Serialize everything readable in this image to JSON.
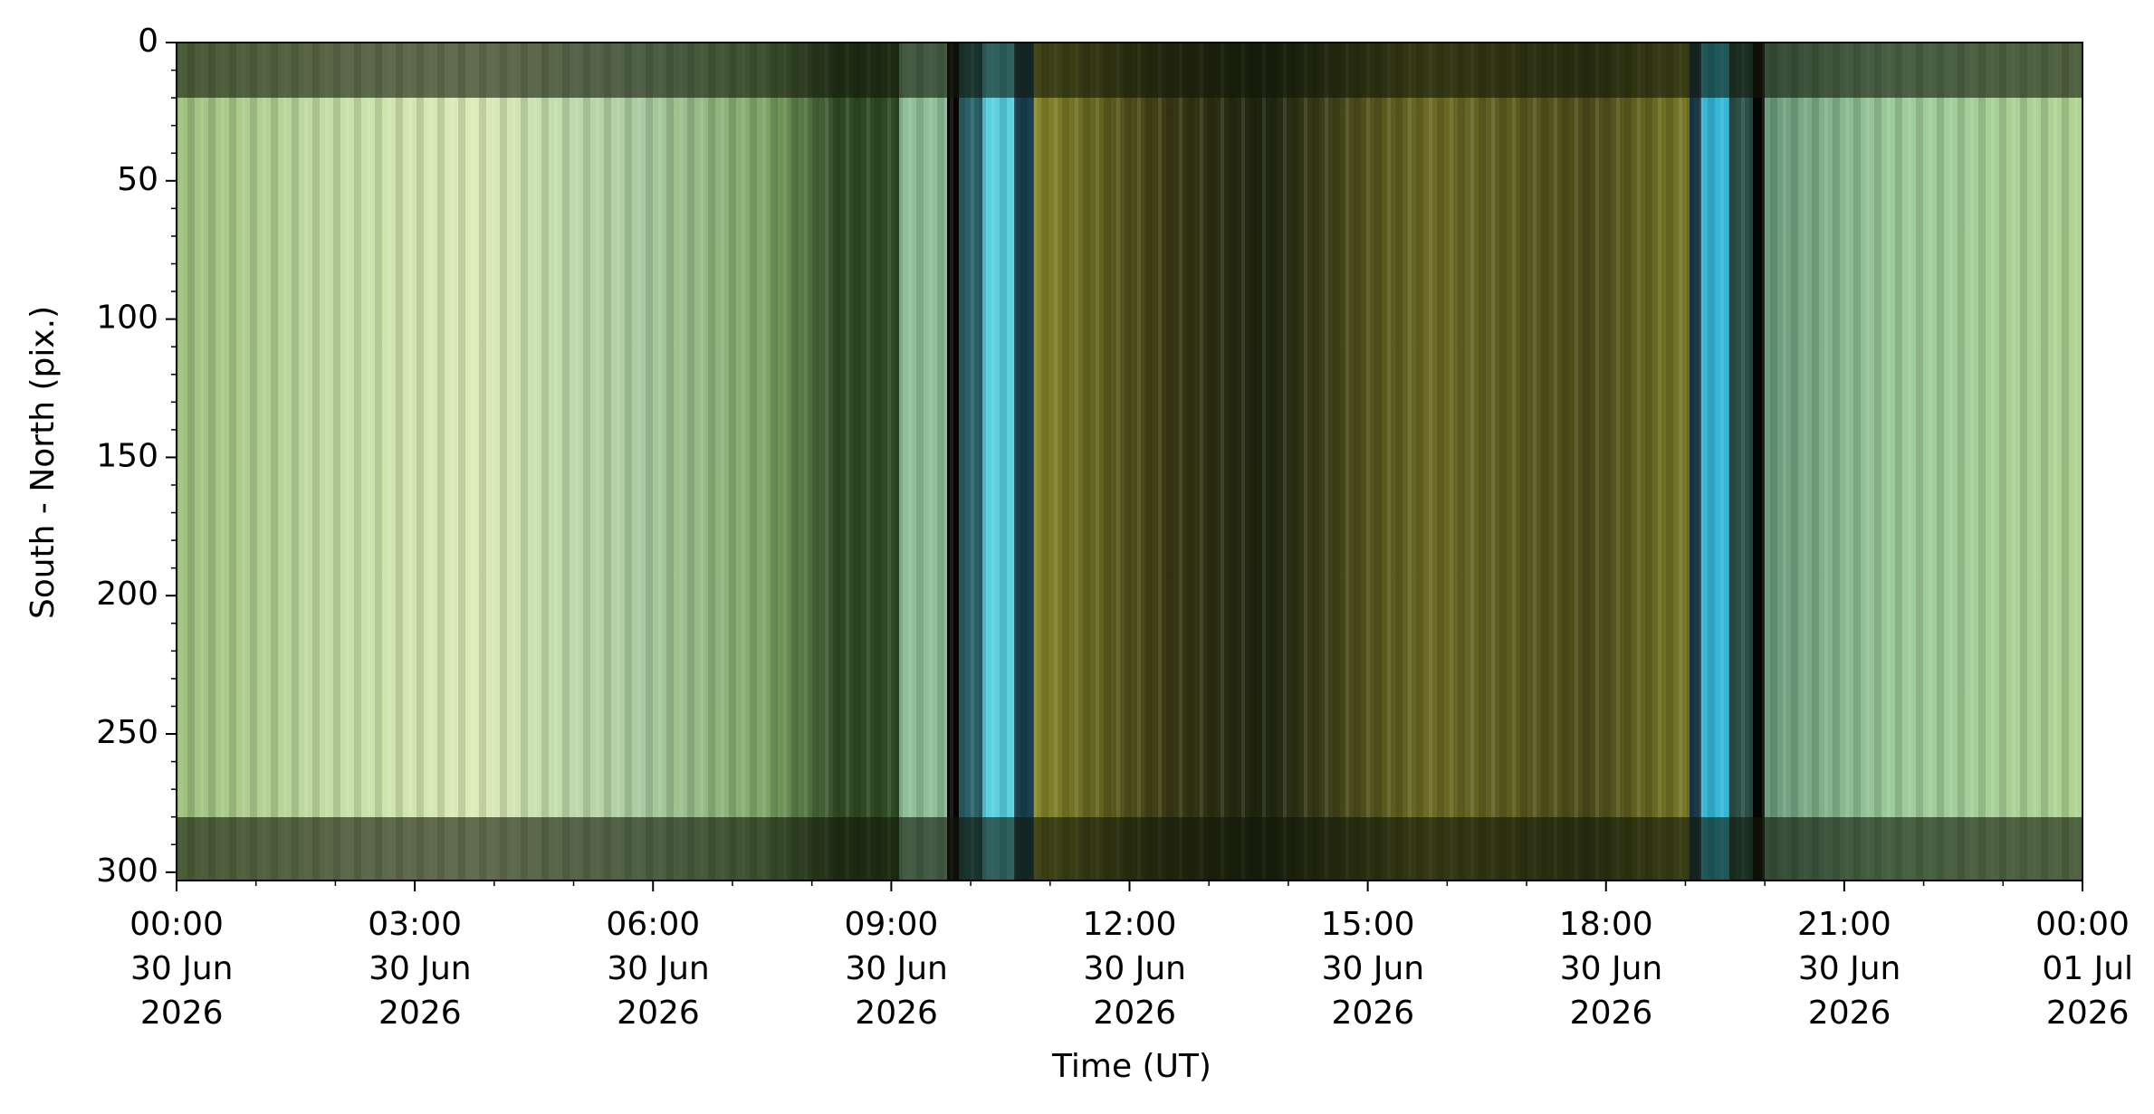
{
  "chart_data": {
    "type": "image",
    "xlabel": "Time (UT)",
    "ylabel": "South - North (pix.)",
    "xlim": [
      "2026-06-30T00:00",
      "2026-07-01T00:00"
    ],
    "ylim": [
      0,
      303
    ],
    "y_inverted": true,
    "xticks": [
      {
        "value": "2026-06-30T00:00",
        "label": "00:00\n30 Jun\n2026"
      },
      {
        "value": "2026-06-30T03:00",
        "label": "03:00\n30 Jun\n2026"
      },
      {
        "value": "2026-06-30T06:00",
        "label": "06:00\n30 Jun\n2026"
      },
      {
        "value": "2026-06-30T09:00",
        "label": "09:00\n30 Jun\n2026"
      },
      {
        "value": "2026-06-30T12:00",
        "label": "12:00\n30 Jun\n2026"
      },
      {
        "value": "2026-06-30T15:00",
        "label": "15:00\n30 Jun\n2026"
      },
      {
        "value": "2026-06-30T18:00",
        "label": "18:00\n30 Jun\n2026"
      },
      {
        "value": "2026-06-30T21:00",
        "label": "21:00\n30 Jun\n2026"
      },
      {
        "value": "2026-07-01T00:00",
        "label": "00:00\n01 Jul\n2026"
      }
    ],
    "xminorticks": [
      "2026-06-30T01:00",
      "2026-06-30T02:00",
      "2026-06-30T04:00",
      "2026-06-30T05:00",
      "2026-06-30T07:00",
      "2026-06-30T08:00",
      "2026-06-30T10:00",
      "2026-06-30T11:00",
      "2026-06-30T13:00",
      "2026-06-30T14:00",
      "2026-06-30T16:00",
      "2026-06-30T17:00",
      "2026-06-30T19:00",
      "2026-06-30T20:00",
      "2026-06-30T22:00",
      "2026-06-30T23:00"
    ],
    "yticks": [
      0,
      50,
      100,
      150,
      200,
      250,
      300
    ],
    "yminorticks": [
      10,
      20,
      30,
      40,
      60,
      70,
      80,
      90,
      110,
      120,
      130,
      140,
      160,
      170,
      180,
      190,
      210,
      220,
      230,
      240,
      260,
      270,
      280,
      290
    ]
  }
}
